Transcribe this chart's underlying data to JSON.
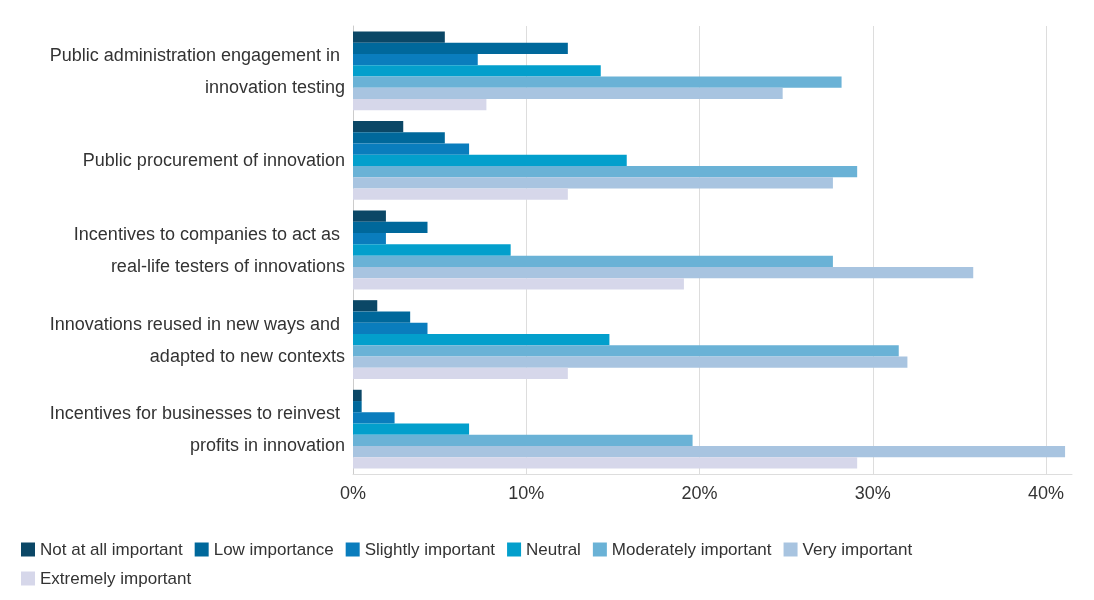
{
  "chart_data": {
    "type": "bar",
    "orientation": "horizontal",
    "categories": [
      "Public administration engagement in innovation testing",
      "Public procurement of innovation",
      "Incentives to companies to act as real-life testers of innovations",
      "Innovations reused in new ways and adapted to new contexts",
      "Incentives for businesses to reinvest profits in innovation"
    ],
    "series": [
      {
        "name": "Not at all important",
        "color": "#0b4766",
        "values": [
          5.3,
          2.9,
          1.9,
          1.4,
          0.5
        ]
      },
      {
        "name": "Low importance",
        "color": "#00689b",
        "values": [
          12.4,
          5.3,
          4.3,
          3.3,
          0.5
        ]
      },
      {
        "name": "Slightly important",
        "color": "#0a7dbd",
        "values": [
          7.2,
          6.7,
          1.9,
          4.3,
          2.4
        ]
      },
      {
        "name": "Neutral",
        "color": "#039fcc",
        "values": [
          14.3,
          15.8,
          9.1,
          14.8,
          6.7
        ]
      },
      {
        "name": "Moderately important",
        "color": "#6ab2d6",
        "values": [
          28.2,
          29.1,
          27.7,
          31.5,
          19.6
        ]
      },
      {
        "name": "Very important",
        "color": "#a8c4e0",
        "values": [
          24.8,
          27.7,
          35.8,
          32.0,
          41.1
        ]
      },
      {
        "name": "Extremely important",
        "color": "#d6d7ea",
        "values": [
          7.7,
          12.4,
          19.1,
          12.4,
          29.1
        ]
      }
    ],
    "xlim": [
      0,
      41.5
    ],
    "xticks": [
      {
        "value": 0,
        "label": "0%"
      },
      {
        "value": 10,
        "label": "10%"
      },
      {
        "value": 20,
        "label": "20%"
      },
      {
        "value": 30,
        "label": "30%"
      },
      {
        "value": 40,
        "label": "40%"
      }
    ],
    "grid": "x",
    "legend": "bottom"
  }
}
